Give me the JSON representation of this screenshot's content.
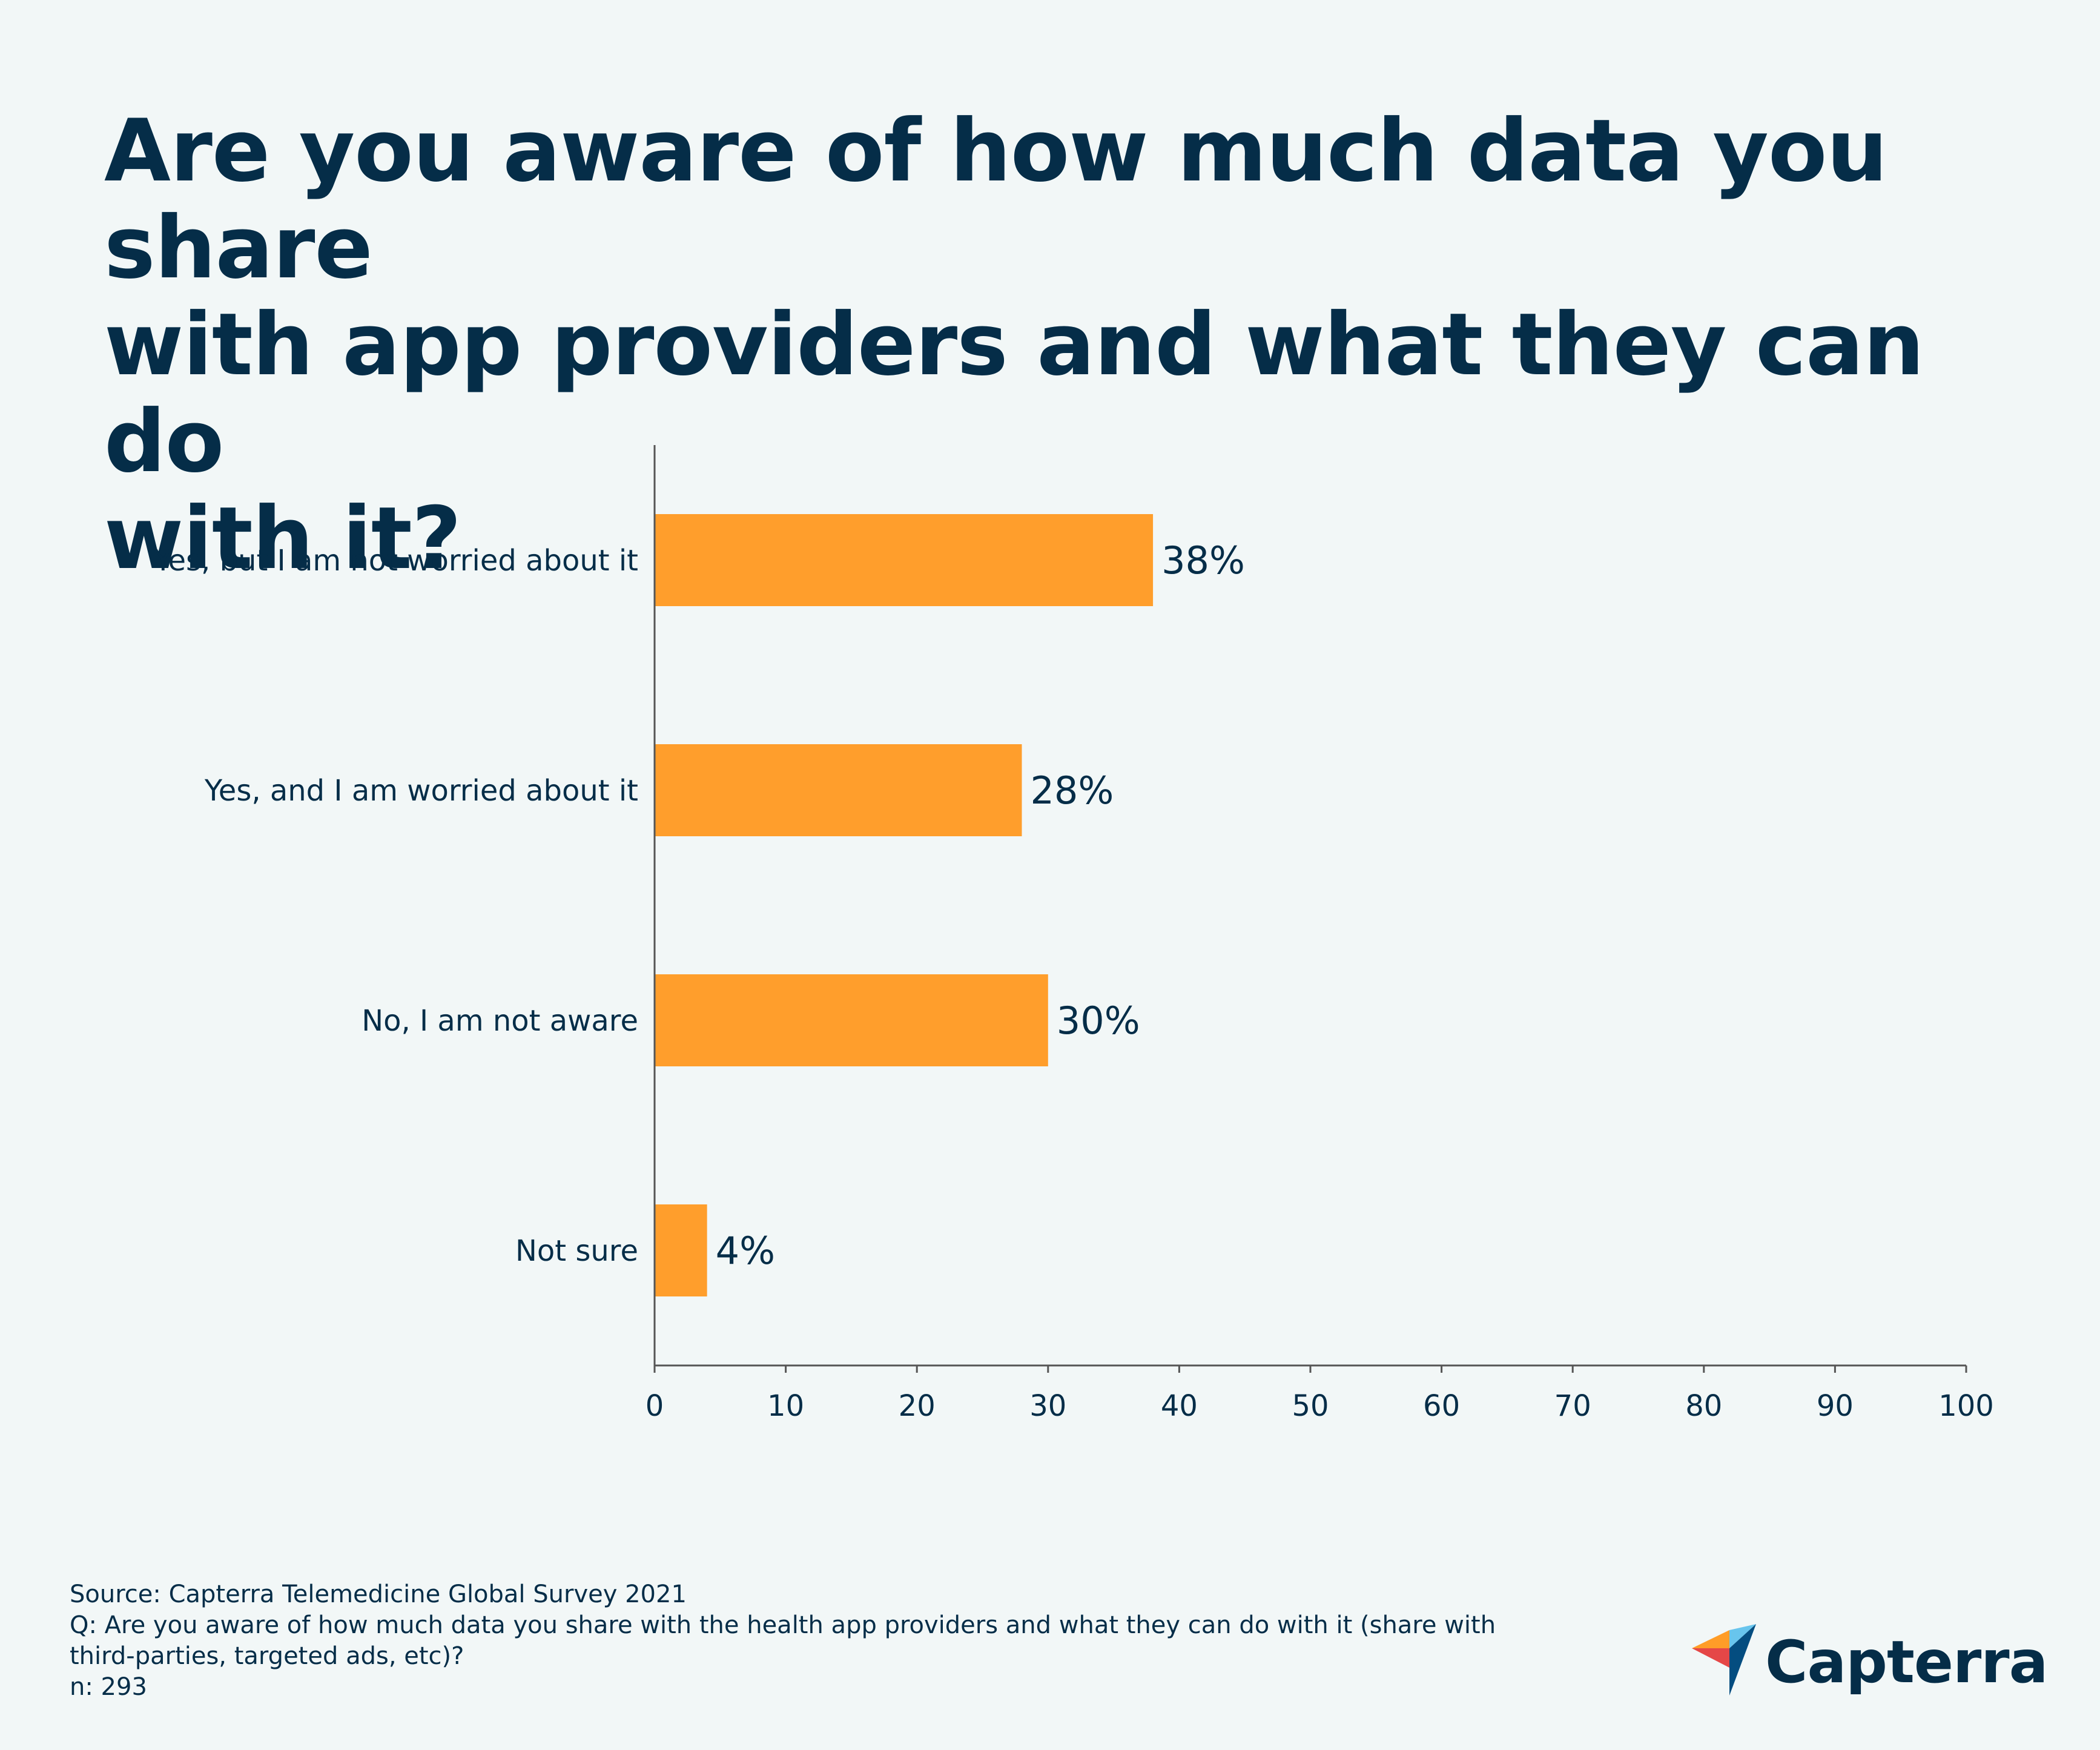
{
  "title_lines": [
    "Are you aware of how much data you share",
    "with app providers and what they can do",
    "with it?"
  ],
  "chart_data": {
    "type": "bar",
    "orientation": "horizontal",
    "categories": [
      "Yes, but I am not worried about it",
      "Yes, and I am worried about it",
      "No, I am not aware",
      "Not sure"
    ],
    "values": [
      38,
      28,
      30,
      4
    ],
    "value_labels": [
      "38%",
      "28%",
      "30%",
      "4%"
    ],
    "xlim": [
      0,
      100
    ],
    "xticks": [
      0,
      10,
      20,
      30,
      40,
      50,
      60,
      70,
      80,
      90,
      100
    ],
    "xlabel": "",
    "ylabel": "",
    "grid": false,
    "bar_color": "#ff9e2c",
    "axis_color": "#555555"
  },
  "footer": {
    "source": "Source: Capterra Telemedicine Global Survey 2021",
    "question_line1": "Q: Are you aware of how much data you share with the health app providers and what they can do with it (share with",
    "question_line2": "third-parties, targeted ads, etc)?",
    "sample": "n: 293"
  },
  "logo": {
    "text": "Capterra",
    "colors": [
      "#ff9d28",
      "#68c5ed",
      "#044d80",
      "#e54747"
    ]
  }
}
